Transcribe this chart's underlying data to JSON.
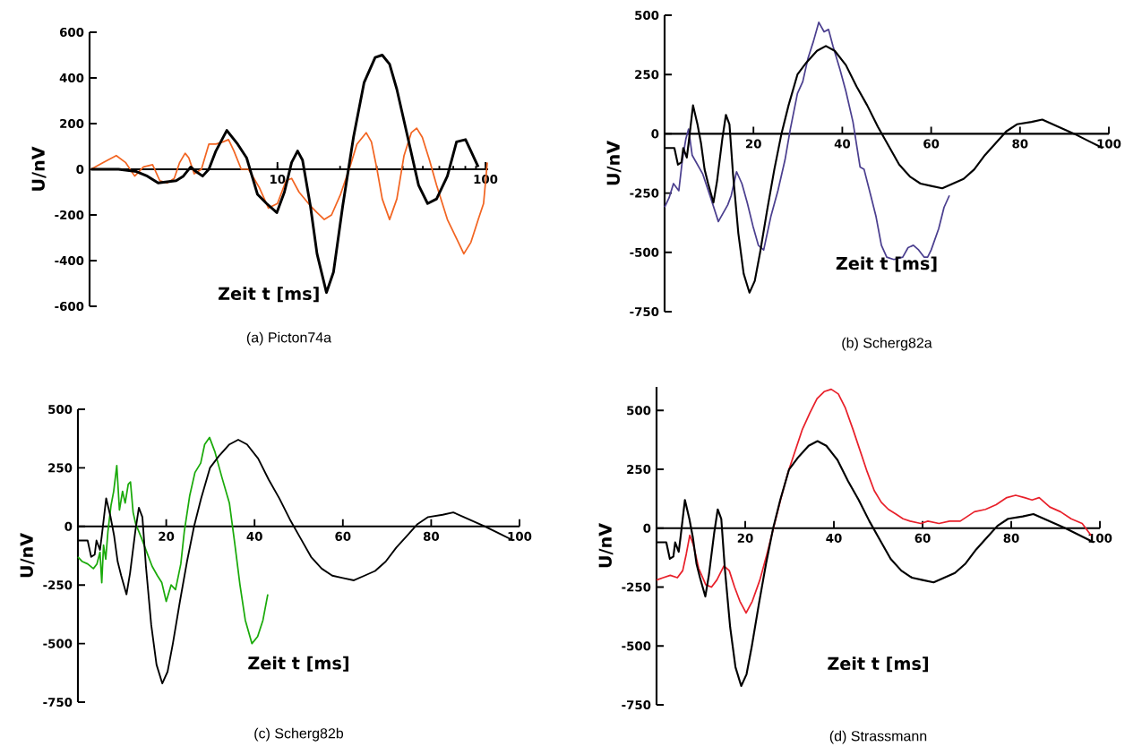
{
  "chart_data": [
    {
      "type": "line",
      "title": "(a)  Picton74a",
      "xlabel": "Zeit t [ms]",
      "ylabel": "U/nV",
      "log": "x",
      "xlim": [
        1.25,
        103
      ],
      "xticks": [
        10,
        100
      ],
      "ylim": [
        -600,
        600
      ],
      "yticks": [
        -600,
        -400,
        -200,
        0,
        200,
        400,
        600
      ],
      "series": [
        {
          "color": "#f26522",
          "x": [
            1.27,
            1.46,
            1.68,
            1.86,
            2.06,
            2.27,
            2.51,
            2.72,
            2.95,
            3.19,
            3.39,
            3.6,
            3.75,
            3.98,
            4.31,
            4.68,
            5.06,
            5.48,
            5.82,
            6.18,
            6.7,
            7.26,
            7.71,
            8.18,
            9.05,
            10,
            11,
            11.7,
            12.7,
            14.4,
            15.5,
            16.8,
            18.2,
            20.1,
            22.3,
            24.1,
            26.7,
            28.3,
            30.1,
            31.9,
            34.6,
            37.5,
            40.6,
            44,
            46.7,
            49.7,
            53.8,
            58.2,
            65.6,
            74.1,
            78.7,
            85.1,
            92.3,
            97.9,
            102
          ],
          "values": [
            0,
            30,
            60,
            30,
            -30,
            10,
            20,
            -50,
            -60,
            -40,
            30,
            70,
            50,
            -20,
            0,
            110,
            110,
            120,
            130,
            80,
            0,
            0,
            -40,
            -80,
            -170,
            -150,
            -50,
            -40,
            -100,
            -160,
            -190,
            -220,
            -200,
            -110,
            10,
            110,
            160,
            120,
            0,
            -130,
            -220,
            -130,
            60,
            160,
            180,
            140,
            40,
            -70,
            -220,
            -320,
            -370,
            -320,
            -220,
            -150,
            30
          ]
        },
        {
          "color": "#000000",
          "x": [
            1.27,
            1.72,
            2.1,
            2.37,
            2.67,
            3.26,
            3.53,
            3.83,
            4.06,
            4.37,
            4.68,
            5.06,
            5.71,
            6.44,
            7.11,
            7.55,
            8.02,
            8.87,
            9.93,
            10.8,
            11.7,
            12.5,
            13.2,
            14.4,
            15.5,
            17.2,
            18.6,
            20.6,
            23.2,
            26.1,
            29.5,
            31.9,
            34.6,
            37.5,
            42.3,
            47.7,
            52.7,
            58.2,
            65.6,
            72.6,
            80.2,
            85.1,
            92.3
          ],
          "values": [
            0,
            0,
            -10,
            -30,
            -60,
            -50,
            -30,
            10,
            -10,
            -30,
            0,
            80,
            170,
            110,
            50,
            -30,
            -110,
            -150,
            -190,
            -100,
            30,
            80,
            40,
            -160,
            -370,
            -540,
            -450,
            -160,
            140,
            380,
            490,
            500,
            460,
            350,
            140,
            -70,
            -150,
            -130,
            -30,
            120,
            130,
            80,
            10
          ]
        }
      ]
    },
    {
      "type": "line",
      "title": "(b)  Scherg82a",
      "xlabel": "Zeit t [ms]",
      "ylabel": "U/nV",
      "xlim": [
        0,
        100
      ],
      "xticks": [
        20,
        40,
        60,
        80,
        100
      ],
      "ylim": [
        -750,
        500
      ],
      "yticks": [
        -750,
        -500,
        -250,
        0,
        250,
        500
      ],
      "series": [
        {
          "color": "#4b3f8f",
          "x": [
            0,
            1,
            2,
            3.2,
            4,
            4.8,
            5.4,
            6.2,
            8.6,
            10.2,
            12.1,
            14.2,
            15,
            16.2,
            17.4,
            18.6,
            19.9,
            21.1,
            22.3,
            23.9,
            25.5,
            27.1,
            28.3,
            29.9,
            31.1,
            32.3,
            33.5,
            34.7,
            35.9,
            36.9,
            37.9,
            39.5,
            40.8,
            42.4,
            44,
            44.9,
            46.4,
            47.6,
            48.8,
            50,
            51.6,
            53.6,
            54.8,
            56,
            57.2,
            58.4,
            59.2,
            60,
            61.7,
            62.9,
            64.1
          ],
          "values": [
            -310,
            -270,
            -210,
            -240,
            -110,
            -20,
            20,
            -90,
            -170,
            -260,
            -370,
            -300,
            -260,
            -160,
            -210,
            -290,
            -390,
            -470,
            -490,
            -350,
            -240,
            -110,
            20,
            170,
            220,
            320,
            390,
            470,
            430,
            440,
            370,
            270,
            180,
            50,
            -140,
            -150,
            -260,
            -350,
            -470,
            -520,
            -530,
            -520,
            -480,
            -470,
            -490,
            -520,
            -520,
            -490,
            -400,
            -310,
            -260
          ]
        },
        {
          "color": "#000000",
          "x": [
            0,
            1,
            2.2,
            3,
            3.8,
            4.2,
            5,
            5.4,
            6.4,
            7.4,
            8.2,
            9,
            9.8,
            11,
            11.8,
            13,
            13.8,
            14.6,
            15.4,
            16.6,
            17.8,
            19.1,
            20.3,
            21.5,
            23.1,
            24.7,
            26.3,
            27.9,
            29.9,
            31.9,
            34.3,
            36.3,
            38.3,
            40.8,
            43.2,
            45.6,
            48,
            50.4,
            52.8,
            55.2,
            57.6,
            60,
            62.5,
            64.9,
            67.3,
            69.7,
            72.1,
            74.5,
            76.9,
            79.3,
            82.6,
            85,
            87.4,
            89.8,
            92.2,
            95.4,
            98.6
          ],
          "values": [
            -60,
            -60,
            -60,
            -130,
            -120,
            -60,
            -100,
            -40,
            120,
            40,
            -40,
            -150,
            -210,
            -290,
            -200,
            -20,
            80,
            40,
            -170,
            -420,
            -590,
            -670,
            -620,
            -500,
            -320,
            -150,
            0,
            120,
            250,
            300,
            350,
            370,
            350,
            290,
            200,
            120,
            30,
            -50,
            -130,
            -180,
            -210,
            -220,
            -230,
            -210,
            -190,
            -150,
            -90,
            -40,
            10,
            40,
            50,
            60,
            40,
            20,
            0,
            -30,
            -60
          ]
        }
      ]
    },
    {
      "type": "line",
      "title": "(c)  Scherg82b",
      "xlabel": "Zeit t [ms]",
      "ylabel": "U/nV",
      "xlim": [
        0,
        100
      ],
      "xticks": [
        20,
        40,
        60,
        80,
        100
      ],
      "ylim": [
        -750,
        500
      ],
      "yticks": [
        -750,
        -500,
        -250,
        0,
        250,
        500
      ],
      "series": [
        {
          "color": "#1aaa0a",
          "x": [
            0,
            1,
            2.2,
            3.5,
            4.3,
            5,
            5.4,
            5.8,
            6.3,
            6.8,
            7.5,
            8.1,
            8.8,
            9.4,
            10.1,
            10.7,
            11.4,
            11.9,
            12.5,
            13.1,
            14.4,
            15.6,
            16.8,
            18,
            19,
            20,
            21.1,
            22.1,
            23.3,
            24.1,
            25.3,
            26.5,
            27.8,
            28.7,
            29.8,
            31,
            32.6,
            34.3,
            35.5,
            36.7,
            37.9,
            39.4,
            40.7,
            41.9,
            43
          ],
          "values": [
            -130,
            -150,
            -160,
            -180,
            -160,
            -110,
            -240,
            -80,
            -140,
            -20,
            90,
            150,
            260,
            70,
            150,
            100,
            180,
            190,
            60,
            10,
            -50,
            -110,
            -170,
            -210,
            -240,
            -320,
            -250,
            -270,
            -160,
            -20,
            130,
            230,
            270,
            350,
            380,
            320,
            210,
            100,
            -70,
            -250,
            -400,
            -500,
            -470,
            -400,
            -290
          ]
        },
        {
          "color": "#000000",
          "x": [
            0,
            1,
            2.2,
            3,
            3.8,
            4.2,
            5,
            5.4,
            6.4,
            7.4,
            8.2,
            9,
            9.8,
            11,
            11.8,
            13,
            13.8,
            14.6,
            15.4,
            16.6,
            17.8,
            19.1,
            20.3,
            21.5,
            23.1,
            24.7,
            26.3,
            27.9,
            29.9,
            31.9,
            34.3,
            36.3,
            38.3,
            40.8,
            43.2,
            45.6,
            48,
            50.4,
            52.8,
            55.2,
            57.6,
            60,
            62.5,
            64.9,
            67.3,
            69.7,
            72.1,
            74.5,
            76.9,
            79.3,
            82.6,
            85,
            87.4,
            89.8,
            92.2,
            95.4,
            98.6
          ],
          "values": [
            -60,
            -60,
            -60,
            -130,
            -120,
            -60,
            -100,
            -40,
            120,
            40,
            -40,
            -150,
            -210,
            -290,
            -200,
            -20,
            80,
            40,
            -170,
            -420,
            -590,
            -670,
            -620,
            -500,
            -320,
            -150,
            0,
            120,
            250,
            300,
            350,
            370,
            350,
            290,
            200,
            120,
            30,
            -50,
            -130,
            -180,
            -210,
            -220,
            -230,
            -210,
            -190,
            -150,
            -90,
            -40,
            10,
            40,
            50,
            60,
            40,
            20,
            0,
            -30,
            -60
          ]
        }
      ]
    },
    {
      "type": "line",
      "title": "(d)  Strassmann",
      "xlabel": "Zeit t [ms]",
      "ylabel": "U/nV",
      "xlim": [
        0,
        100
      ],
      "xticks": [
        20,
        40,
        60,
        80,
        100
      ],
      "ylim": [
        -750,
        600
      ],
      "yticks": [
        -750,
        -500,
        -250,
        0,
        250,
        500
      ],
      "series": [
        {
          "color": "#e8202a",
          "x": [
            0,
            1.5,
            3.1,
            4.7,
            5.9,
            6.7,
            7.5,
            8.3,
            9.5,
            11.1,
            12.4,
            13.6,
            15.2,
            16.4,
            17.6,
            18.8,
            20.2,
            21.6,
            23.3,
            24.9,
            26.5,
            28.1,
            29.7,
            31.3,
            32.9,
            34.6,
            36.2,
            37.8,
            39.4,
            41,
            42.6,
            44.3,
            45.9,
            47.5,
            49.1,
            50.7,
            52.3,
            54,
            55.6,
            57.2,
            59.6,
            61.2,
            63.7,
            66.1,
            68.5,
            70.1,
            71.7,
            74.2,
            76.6,
            79,
            81,
            83,
            84.7,
            86.3,
            88.7,
            91.1,
            93.5,
            96,
            98
          ],
          "values": [
            -220,
            -210,
            -200,
            -210,
            -180,
            -110,
            -30,
            -70,
            -170,
            -240,
            -250,
            -220,
            -160,
            -180,
            -250,
            -310,
            -360,
            -310,
            -220,
            -110,
            10,
            130,
            240,
            330,
            420,
            490,
            550,
            580,
            590,
            570,
            510,
            420,
            330,
            240,
            160,
            110,
            80,
            60,
            40,
            30,
            20,
            30,
            20,
            30,
            30,
            50,
            70,
            80,
            100,
            130,
            140,
            130,
            120,
            130,
            90,
            70,
            40,
            20,
            -30
          ]
        },
        {
          "color": "#000000",
          "x": [
            0,
            1,
            2.2,
            3,
            3.8,
            4.2,
            5,
            5.4,
            6.4,
            7.4,
            8.2,
            9,
            9.8,
            11,
            11.8,
            13,
            13.8,
            14.6,
            15.4,
            16.6,
            17.8,
            19.1,
            20.3,
            21.5,
            23.1,
            24.7,
            26.3,
            27.9,
            29.9,
            31.9,
            34.3,
            36.3,
            38.3,
            40.8,
            43.2,
            45.6,
            48,
            50.4,
            52.8,
            55.2,
            57.6,
            60,
            62.5,
            64.9,
            67.3,
            69.7,
            72.1,
            74.5,
            76.9,
            79.3,
            82.6,
            85,
            87.4,
            89.8,
            92.2,
            95.4,
            98.6
          ],
          "values": [
            -60,
            -60,
            -60,
            -130,
            -120,
            -60,
            -100,
            -40,
            120,
            40,
            -40,
            -150,
            -210,
            -290,
            -200,
            -20,
            80,
            40,
            -170,
            -420,
            -590,
            -670,
            -620,
            -500,
            -320,
            -150,
            0,
            120,
            250,
            300,
            350,
            370,
            350,
            290,
            200,
            120,
            30,
            -50,
            -130,
            -180,
            -210,
            -220,
            -230,
            -210,
            -190,
            -150,
            -90,
            -40,
            10,
            40,
            50,
            60,
            40,
            20,
            0,
            -30,
            -60
          ]
        }
      ]
    }
  ]
}
